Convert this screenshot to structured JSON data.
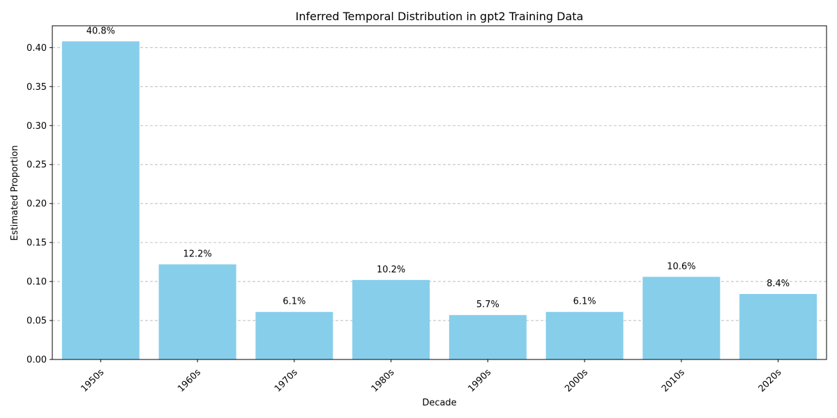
{
  "chart_data": {
    "type": "bar",
    "title": "Inferred Temporal Distribution in gpt2 Training Data",
    "xlabel": "Decade",
    "ylabel": "Estimated Proportion",
    "categories": [
      "1950s",
      "1960s",
      "1970s",
      "1980s",
      "1990s",
      "2000s",
      "2010s",
      "2020s"
    ],
    "values": [
      0.408,
      0.122,
      0.061,
      0.102,
      0.057,
      0.061,
      0.106,
      0.084
    ],
    "data_labels": [
      "40.8%",
      "12.2%",
      "6.1%",
      "10.2%",
      "5.7%",
      "6.1%",
      "10.6%",
      "8.4%"
    ],
    "ylim": [
      0,
      0.428
    ],
    "yticks": [
      0.0,
      0.05,
      0.1,
      0.15,
      0.2,
      0.25,
      0.3,
      0.35,
      0.4
    ],
    "ytick_labels": [
      "0.00",
      "0.05",
      "0.10",
      "0.15",
      "0.20",
      "0.25",
      "0.30",
      "0.35",
      "0.40"
    ],
    "grid": "y-dashed",
    "bar_color": "#87ceeb"
  }
}
